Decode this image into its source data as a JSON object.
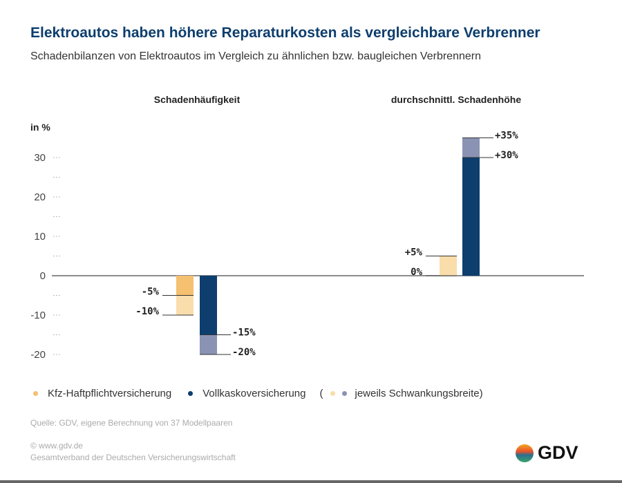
{
  "title": "Elektroautos haben höhere Reparaturkosten als vergleichbare Verbrenner",
  "subtitle": "Schadenbilanzen von Elektroautos im Vergleich zu ähnlichen bzw. baugleichen Verbrennern",
  "chart_data": {
    "type": "bar",
    "ylabel": "in %",
    "ylim": [
      -20,
      35
    ],
    "yticks": [
      "30",
      "20",
      "10",
      "0",
      "-10",
      "-20"
    ],
    "grid": false,
    "categories": [
      "Schadenhäufigkeit",
      "durchschnittl. Schadenhöhe"
    ],
    "series": [
      {
        "name": "Kfz-Haftpflichtversicherung",
        "color": "#f5c070",
        "range_color": "#f9ddab",
        "ranges": [
          [
            -5,
            -10
          ],
          [
            0,
            5
          ]
        ],
        "labels": [
          [
            "-5%",
            "-10%"
          ],
          [
            "0%",
            "+5%"
          ]
        ]
      },
      {
        "name": "Vollkaskoversicherung",
        "color": "#0d3e6e",
        "range_color": "#8a93b3",
        "ranges": [
          [
            -15,
            -20
          ],
          [
            30,
            35
          ]
        ],
        "labels": [
          [
            "-15%",
            "-20%"
          ],
          [
            "+30%",
            "+35%"
          ]
        ]
      }
    ],
    "range_legend": "jeweils Schwankungsbreite)",
    "range_legend_open": "("
  },
  "source": "Quelle: GDV, eigene Berechnung von 37 Modellpaaren",
  "copyright": "© www.gdv.de",
  "org": "Gesamtverband der Deutschen Versicherungswirtschaft",
  "logo_text": "GDV"
}
